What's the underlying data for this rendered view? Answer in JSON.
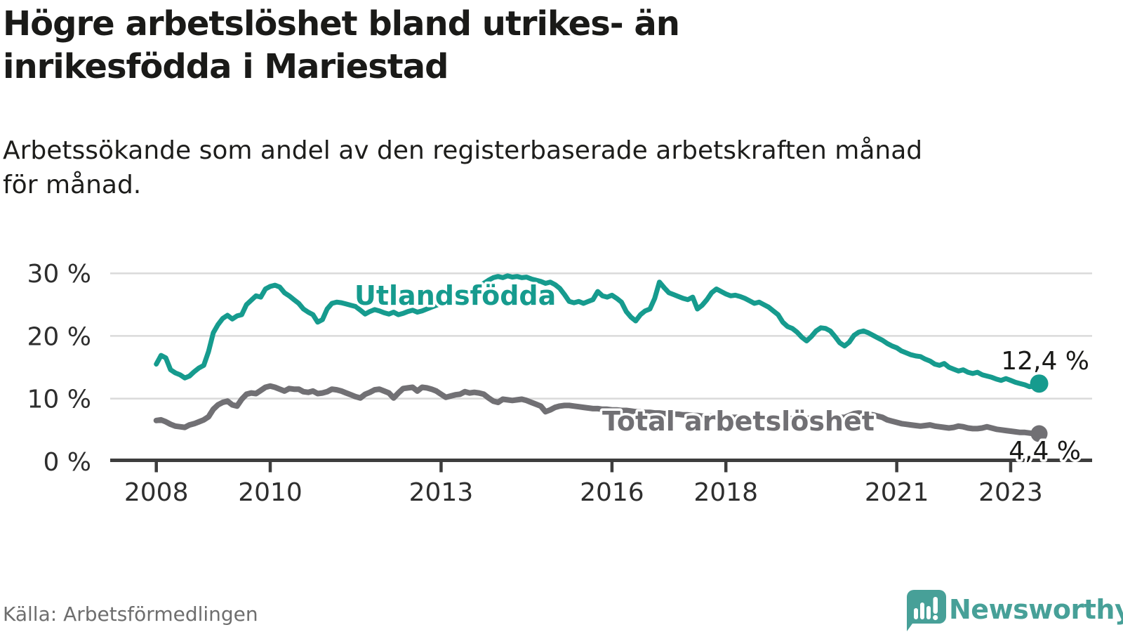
{
  "header": {
    "title_lines": [
      "Högre arbetslöshet bland utrikes- än",
      "inrikesfödda i Mariestad"
    ],
    "subtitle_lines": [
      "Arbetssökande som andel av den registerbaserade arbetskraften månad",
      "för månad."
    ]
  },
  "footer": {
    "source": "Källa: Arbetsförmedlingen",
    "brand": "Newsworthy"
  },
  "colors": {
    "foreign_born_line": "#169b8e",
    "total_line": "#717074",
    "grid": "#dadada",
    "axis": "#3d3d3d",
    "title_text": "#1a1a18",
    "muted_text": "#6e6e6e",
    "brand_teal": "#47a098"
  },
  "chart_data": {
    "type": "line",
    "title": "Högre arbetslöshet bland utrikes- än inrikesfödda i Mariestad",
    "subtitle": "Arbetssökande som andel av den registerbaserade arbetskraften månad för månad.",
    "source": "Källa: Arbetsförmedlingen",
    "unit": "percent of registered labour force",
    "frequency": "monthly",
    "x_start": "2008-01",
    "x_end": "2023-07",
    "x_ticks": [
      2008,
      2010,
      2013,
      2016,
      2018,
      2021,
      2023
    ],
    "y_tick_labels": [
      "30 %",
      "20 %",
      "10 %",
      "0 %"
    ],
    "y_tick_values": [
      30,
      20,
      10,
      0
    ],
    "ylim": [
      0,
      32
    ],
    "grid": "horizontal",
    "legend_position": "inline-labels",
    "series": [
      {
        "name": "Utlandsfödda",
        "color": "#169b8e",
        "end_label": "12,4 %",
        "end_value": 12.4,
        "values": [
          15.5,
          16.9,
          16.5,
          14.6,
          14.1,
          13.8,
          13.3,
          13.6,
          14.3,
          14.9,
          15.3,
          17.5,
          20.5,
          21.8,
          22.8,
          23.3,
          22.7,
          23.2,
          23.4,
          25.0,
          25.7,
          26.4,
          26.2,
          27.5,
          27.9,
          28.1,
          27.8,
          26.9,
          26.4,
          25.8,
          25.2,
          24.3,
          23.8,
          23.4,
          22.2,
          22.6,
          24.3,
          25.2,
          25.4,
          25.3,
          25.1,
          24.9,
          24.7,
          24.1,
          23.5,
          23.9,
          24.2,
          24.0,
          23.7,
          23.5,
          23.8,
          23.4,
          23.6,
          23.9,
          24.1,
          23.8,
          24.0,
          24.3,
          24.6,
          24.9,
          25.2,
          25.5,
          25.8,
          26.1,
          26.4,
          26.7,
          27.1,
          27.5,
          27.9,
          28.4,
          28.9,
          29.3,
          29.5,
          29.3,
          29.6,
          29.4,
          29.5,
          29.3,
          29.4,
          29.1,
          28.9,
          28.7,
          28.4,
          28.6,
          28.2,
          27.6,
          26.6,
          25.5,
          25.3,
          25.5,
          25.2,
          25.5,
          25.8,
          27.1,
          26.4,
          26.2,
          26.5,
          26.0,
          25.4,
          23.9,
          23.0,
          22.4,
          23.4,
          24.0,
          24.3,
          26.0,
          28.6,
          27.7,
          26.9,
          26.6,
          26.3,
          26.0,
          25.8,
          26.2,
          24.3,
          24.9,
          25.8,
          26.9,
          27.5,
          27.1,
          26.7,
          26.4,
          26.5,
          26.3,
          26.0,
          25.6,
          25.2,
          25.4,
          25.0,
          24.6,
          24.0,
          23.4,
          22.2,
          21.5,
          21.2,
          20.6,
          19.8,
          19.2,
          19.9,
          20.8,
          21.3,
          21.2,
          20.8,
          19.9,
          18.9,
          18.4,
          19.0,
          20.1,
          20.6,
          20.8,
          20.5,
          20.1,
          19.7,
          19.3,
          18.8,
          18.4,
          18.1,
          17.6,
          17.3,
          17.0,
          16.8,
          16.7,
          16.3,
          16.0,
          15.5,
          15.3,
          15.6,
          15.0,
          14.7,
          14.4,
          14.6,
          14.2,
          14.0,
          14.2,
          13.8,
          13.6,
          13.4,
          13.1,
          12.9,
          13.2,
          12.9,
          12.6,
          12.4,
          12.2,
          11.9,
          12.0,
          12.4
        ]
      },
      {
        "name": "Total arbetslöshet",
        "color": "#717074",
        "end_label": "4,4 %",
        "end_value": 4.4,
        "values": [
          6.5,
          6.6,
          6.3,
          5.9,
          5.6,
          5.5,
          5.4,
          5.8,
          6.0,
          6.3,
          6.6,
          7.1,
          8.3,
          9.0,
          9.4,
          9.6,
          9.0,
          8.8,
          9.9,
          10.7,
          10.9,
          10.8,
          11.3,
          11.8,
          12.0,
          11.8,
          11.5,
          11.2,
          11.6,
          11.5,
          11.5,
          11.1,
          11.0,
          11.2,
          10.8,
          10.9,
          11.1,
          11.5,
          11.4,
          11.2,
          10.9,
          10.6,
          10.3,
          10.1,
          10.7,
          11.0,
          11.4,
          11.5,
          11.2,
          10.9,
          10.1,
          10.9,
          11.6,
          11.7,
          11.8,
          11.2,
          11.8,
          11.7,
          11.5,
          11.2,
          10.7,
          10.2,
          10.4,
          10.6,
          10.7,
          11.1,
          10.9,
          11.0,
          10.9,
          10.7,
          10.1,
          9.6,
          9.4,
          9.9,
          9.8,
          9.7,
          9.8,
          9.9,
          9.7,
          9.4,
          9.1,
          8.8,
          7.9,
          8.2,
          8.6,
          8.8,
          8.9,
          8.9,
          8.8,
          8.7,
          8.6,
          8.5,
          8.4,
          8.4,
          8.3,
          8.3,
          8.2,
          8.2,
          8.1,
          8.1,
          8.0,
          7.9,
          7.9,
          7.8,
          7.8,
          7.7,
          7.7,
          7.6,
          7.6,
          7.5,
          7.5,
          7.4,
          7.4,
          7.3,
          7.3,
          7.2,
          7.2,
          7.2,
          7.1,
          7.1,
          7.1,
          7.0,
          7.0,
          7.0,
          6.9,
          6.9,
          6.9,
          6.8,
          6.8,
          6.8,
          6.8,
          6.8,
          6.8,
          6.8,
          6.8,
          6.8,
          6.8,
          6.8,
          6.9,
          6.9,
          6.9,
          6.9,
          6.9,
          6.9,
          7.0,
          7.0,
          7.3,
          7.6,
          7.7,
          7.6,
          7.5,
          7.4,
          7.2,
          7.0,
          6.6,
          6.4,
          6.2,
          6.0,
          5.9,
          5.8,
          5.7,
          5.6,
          5.7,
          5.8,
          5.6,
          5.5,
          5.4,
          5.3,
          5.4,
          5.6,
          5.5,
          5.3,
          5.2,
          5.2,
          5.3,
          5.5,
          5.3,
          5.1,
          5.0,
          4.9,
          4.8,
          4.7,
          4.6,
          4.6,
          4.5,
          4.4,
          4.4
        ]
      }
    ]
  }
}
